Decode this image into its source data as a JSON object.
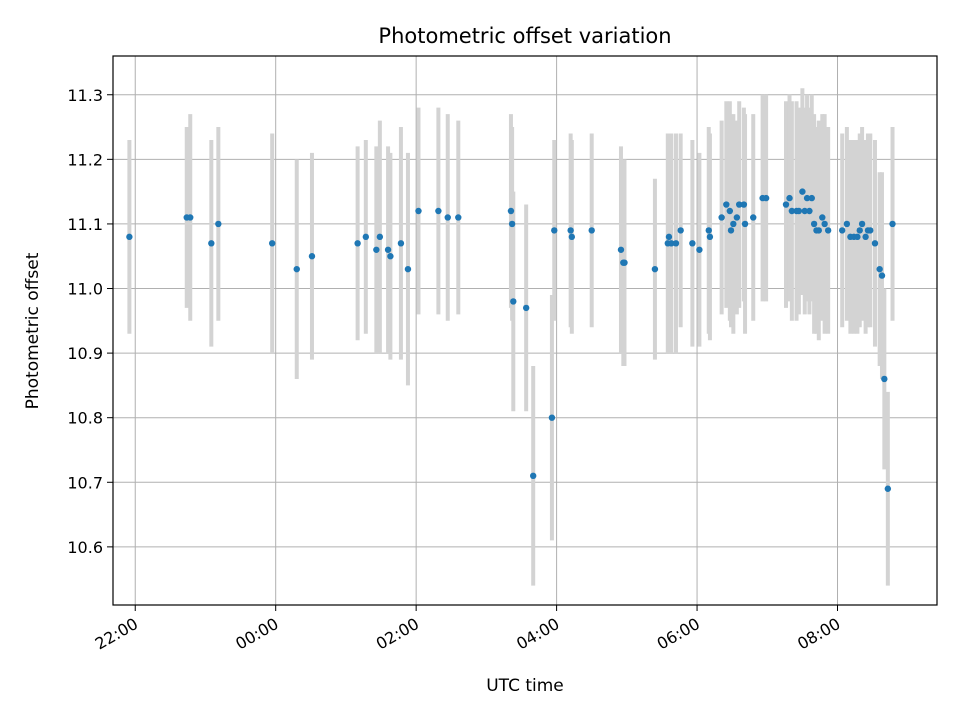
{
  "chart_data": {
    "type": "scatter",
    "title": "Photometric offset variation",
    "xlabel": "UTC time",
    "ylabel": "Photometric offset",
    "xlim": [
      "21:41",
      "09:25"
    ],
    "ylim": [
      10.51,
      11.36
    ],
    "xticks": [
      "22:00",
      "00:00",
      "02:00",
      "04:00",
      "06:00",
      "08:00"
    ],
    "yticks": [
      "10.6",
      "10.7",
      "10.8",
      "10.9",
      "11.0",
      "11.1",
      "11.2",
      "11.3"
    ],
    "grid": true,
    "point_color": "#1f77b4",
    "errorbar_color": "#d3d3d3",
    "series": [
      {
        "x": [
          "21:55",
          "22:44",
          "22:47",
          "23:05",
          "23:11",
          "23:57",
          "00:18",
          "00:31",
          "01:10",
          "01:17",
          "01:26",
          "01:29",
          "01:36",
          "01:38",
          "01:47",
          "01:53",
          "02:02",
          "02:19",
          "02:27",
          "02:36",
          "03:21",
          "03:22",
          "03:23",
          "03:34",
          "03:40",
          "03:56",
          "03:58",
          "04:12",
          "04:13",
          "04:30",
          "04:55",
          "04:57",
          "04:58",
          "05:24",
          "05:35",
          "05:36",
          "05:38",
          "05:42",
          "05:46",
          "05:56",
          "06:02",
          "06:10",
          "06:11",
          "06:21",
          "06:25",
          "06:28",
          "06:29",
          "06:31",
          "06:34",
          "06:36",
          "06:40",
          "06:41",
          "06:48",
          "06:56",
          "06:59",
          "07:16",
          "07:19",
          "07:21",
          "07:25",
          "07:27",
          "07:30",
          "07:32",
          "07:34",
          "07:36",
          "07:38",
          "07:40",
          "07:42",
          "07:44",
          "07:47",
          "07:49",
          "07:52",
          "08:04",
          "08:08",
          "08:11",
          "08:14",
          "08:17",
          "08:19",
          "08:21",
          "08:24",
          "08:26",
          "08:28",
          "08:32",
          "08:36",
          "08:38",
          "08:40",
          "08:43",
          "08:47"
        ],
        "y": [
          11.08,
          11.11,
          11.11,
          11.07,
          11.1,
          11.07,
          11.03,
          11.05,
          11.07,
          11.08,
          11.06,
          11.08,
          11.06,
          11.05,
          11.07,
          11.03,
          11.12,
          11.12,
          11.11,
          11.11,
          11.12,
          11.1,
          10.98,
          10.97,
          10.71,
          10.8,
          11.09,
          11.09,
          11.08,
          11.09,
          11.06,
          11.04,
          11.04,
          11.03,
          11.07,
          11.08,
          11.07,
          11.07,
          11.09,
          11.07,
          11.06,
          11.09,
          11.08,
          11.11,
          11.13,
          11.12,
          11.09,
          11.1,
          11.11,
          11.13,
          11.13,
          11.1,
          11.11,
          11.14,
          11.14,
          11.13,
          11.14,
          11.12,
          11.12,
          11.12,
          11.15,
          11.12,
          11.14,
          11.12,
          11.14,
          11.1,
          11.09,
          11.09,
          11.11,
          11.1,
          11.09,
          11.09,
          11.1,
          11.08,
          11.08,
          11.08,
          11.09,
          11.1,
          11.08,
          11.09,
          11.09,
          11.07,
          11.03,
          11.02,
          10.86,
          10.69,
          11.1
        ],
        "err": [
          0.15,
          0.14,
          0.16,
          0.16,
          0.15,
          0.17,
          0.17,
          0.16,
          0.15,
          0.15,
          0.16,
          0.18,
          0.16,
          0.16,
          0.18,
          0.18,
          0.16,
          0.16,
          0.16,
          0.15,
          0.15,
          0.15,
          0.17,
          0.16,
          0.17,
          0.19,
          0.14,
          0.15,
          0.15,
          0.15,
          0.16,
          0.16,
          0.16,
          0.14,
          0.17,
          0.16,
          0.17,
          0.17,
          0.15,
          0.16,
          0.15,
          0.16,
          0.16,
          0.15,
          0.16,
          0.17,
          0.15,
          0.17,
          0.15,
          0.16,
          0.15,
          0.17,
          0.16,
          0.16,
          0.16,
          0.16,
          0.16,
          0.17,
          0.17,
          0.16,
          0.16,
          0.16,
          0.16,
          0.16,
          0.16,
          0.17,
          0.16,
          0.17,
          0.16,
          0.17,
          0.16,
          0.15,
          0.15,
          0.15,
          0.15,
          0.15,
          0.15,
          0.15,
          0.15,
          0.15,
          0.15,
          0.16,
          0.15,
          0.16,
          0.14,
          0.15,
          0.15
        ]
      }
    ]
  }
}
